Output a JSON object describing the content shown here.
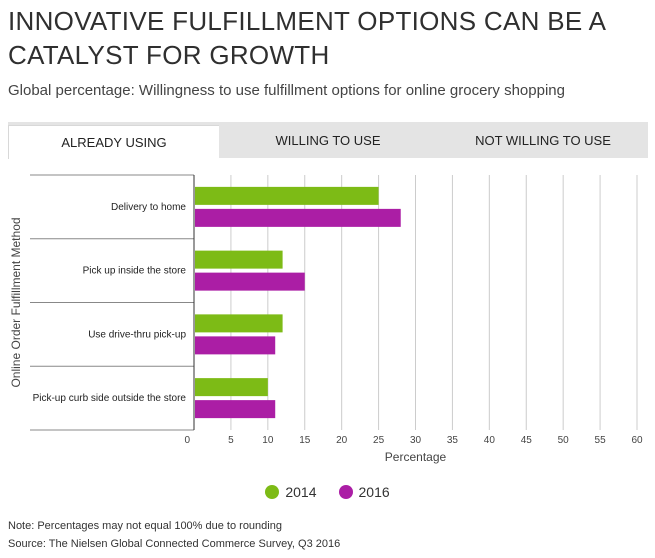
{
  "title": "INNOVATIVE FULFILLMENT OPTIONS CAN BE A CATALYST FOR GROWTH",
  "subtitle": "Global percentage: Willingness to use fulfillment options for online grocery shopping",
  "tabs": [
    {
      "label": "ALREADY USING",
      "active": true
    },
    {
      "label": "WILLING TO USE",
      "active": false
    },
    {
      "label": "NOT WILLING TO USE",
      "active": false
    }
  ],
  "chart_data": {
    "type": "bar",
    "orientation": "horizontal",
    "categories": [
      "Delivery to home",
      "Pick up inside the store",
      "Use drive-thru pick-up",
      "Pick-up curb side outside the store"
    ],
    "series": [
      {
        "name": "2014",
        "color": "#7dbb16",
        "values": [
          25,
          12,
          12,
          10
        ]
      },
      {
        "name": "2016",
        "color": "#ab1ea5",
        "values": [
          28,
          15,
          11,
          11
        ]
      }
    ],
    "xlabel": "Percentage",
    "ylabel": "Online Order Fulfillment Method",
    "xlim": [
      0,
      60
    ],
    "xticks": [
      0,
      5,
      10,
      15,
      20,
      25,
      30,
      35,
      40,
      45,
      50,
      55,
      60
    ],
    "grid": true,
    "legend_position": "bottom-center"
  },
  "footer": {
    "note": "Note: Percentages may not equal 100% due to rounding",
    "source": "Source: The Nielsen Global Connected Commerce Survey, Q3 2016"
  }
}
